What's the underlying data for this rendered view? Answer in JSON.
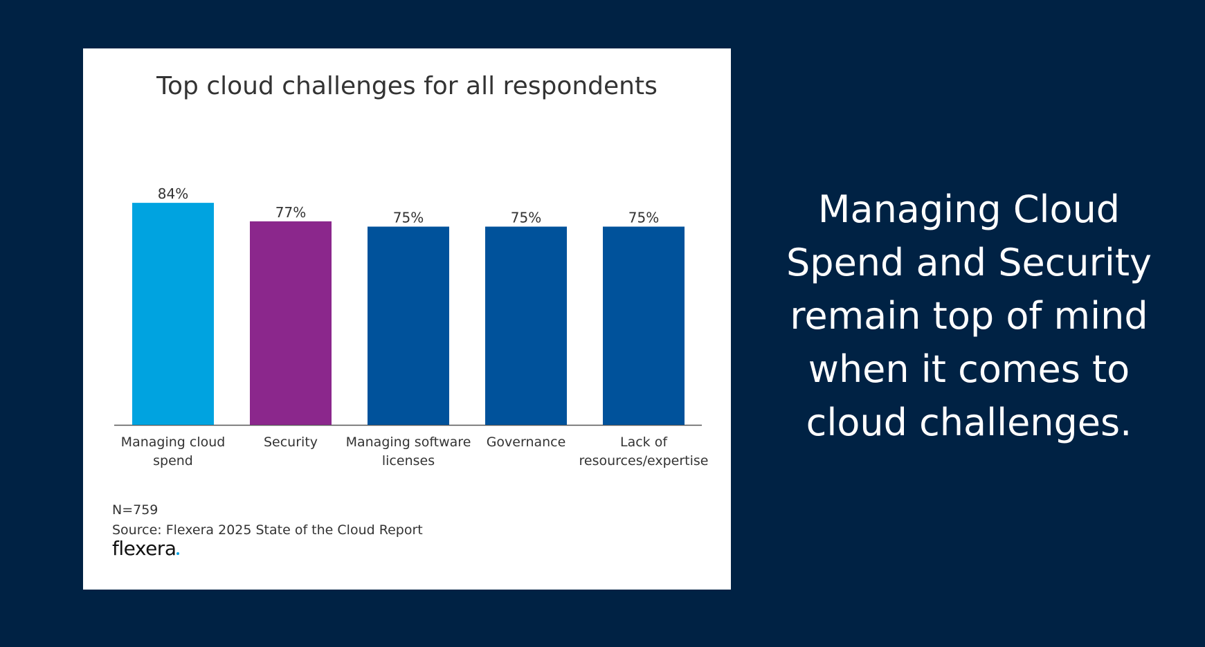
{
  "chart_data": {
    "type": "bar",
    "title": "Top cloud challenges for all respondents",
    "categories": [
      [
        "Managing cloud",
        "spend"
      ],
      [
        "Security"
      ],
      [
        "Managing software",
        "licenses"
      ],
      [
        "Governance"
      ],
      [
        "Lack of",
        "resources/expertise"
      ]
    ],
    "values": [
      84,
      77,
      75,
      75,
      75
    ],
    "value_labels": [
      "84%",
      "77%",
      "75%",
      "75%",
      "75%"
    ],
    "colors": [
      "#00a3e0",
      "#8b278c",
      "#00529b",
      "#00529b",
      "#00529b"
    ],
    "unit": "%",
    "ylim": [
      0,
      100
    ],
    "grid": false,
    "legend": "none"
  },
  "footnote": {
    "n": "N=759",
    "source": "Source: Flexera 2025 State of the Cloud Report"
  },
  "logo": {
    "text": "flexera"
  },
  "headline": {
    "lines": [
      "Managing Cloud",
      "Spend and Security",
      "remain top of mind",
      "when it comes to",
      "cloud challenges."
    ]
  },
  "colors": {
    "background": "#002244",
    "card": "#ffffff",
    "axis": "#555555",
    "text": "#333333"
  }
}
